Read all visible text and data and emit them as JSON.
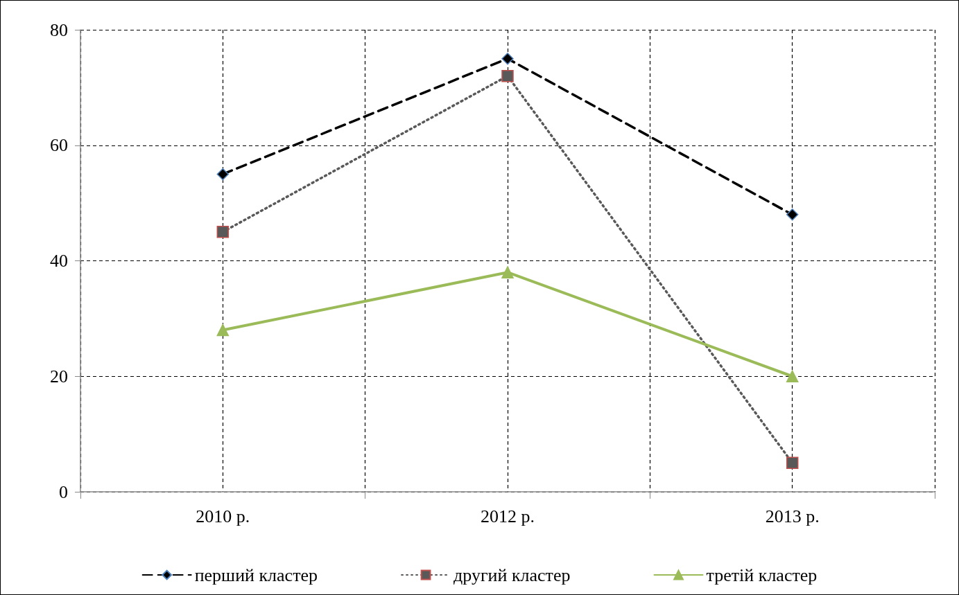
{
  "chart_data": {
    "type": "line",
    "categories": [
      "2010 р.",
      "2012 р.",
      "2013 р."
    ],
    "series": [
      {
        "name": "перший кластер",
        "color": "#000000",
        "values": [
          55,
          75,
          48
        ],
        "marker": "diamond",
        "line_style": "dashed"
      },
      {
        "name": "другий кластер",
        "color": "#595959",
        "values": [
          45,
          72,
          5
        ],
        "marker": "square",
        "line_style": "dotted"
      },
      {
        "name": "третій кластер",
        "color": "#9bbb59",
        "values": [
          28,
          38,
          20
        ],
        "marker": "triangle",
        "line_style": "solid"
      }
    ],
    "ylim": [
      0,
      80
    ],
    "yticks": [
      0,
      20,
      40,
      60,
      80
    ],
    "grid": true,
    "legend": "bottom"
  }
}
